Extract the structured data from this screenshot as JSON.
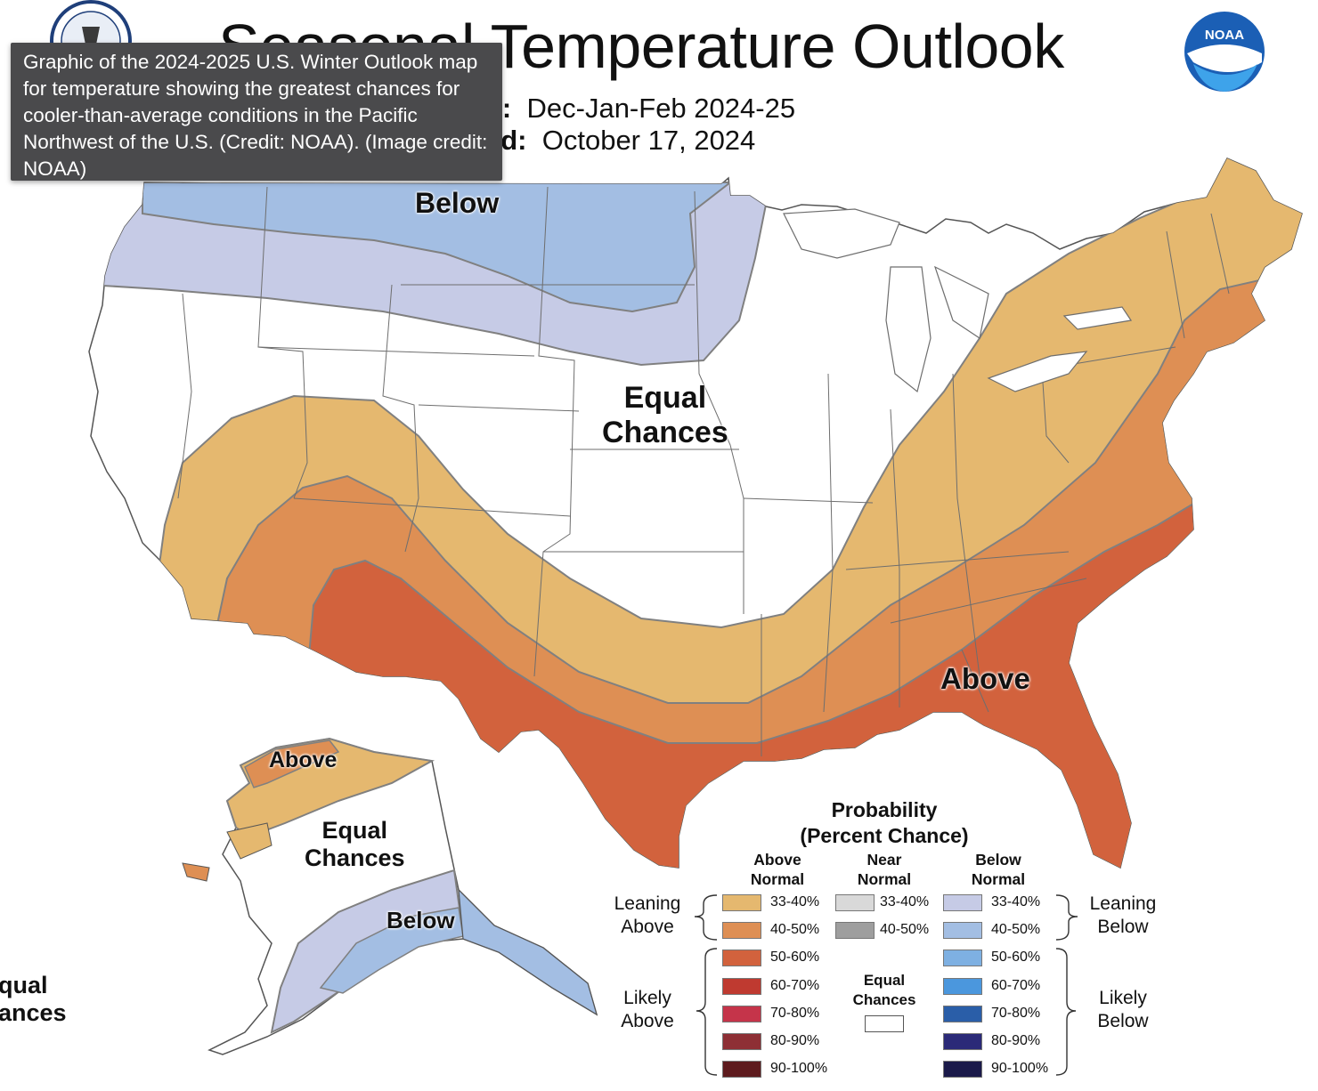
{
  "title": "Seasonal Temperature Outlook",
  "header": {
    "valid_label": "d:",
    "valid_value": "Dec-Jan-Feb 2024-25",
    "issued_label": "ed:",
    "issued_value": "October 17, 2024"
  },
  "tooltip": {
    "text": "Graphic of the 2024-2025 U.S. Winter Outlook map for temperature showing the greatest chances for cooler-than-average conditions in the Pacific Northwest of the U.S. (Credit: NOAA). (Image credit: NOAA)"
  },
  "logos": {
    "noaa_text": "NOAA"
  },
  "map_labels": {
    "below_north": "Below",
    "equal_chances": "Equal\nChances",
    "above_south": "Above",
    "alaska_above": "Above",
    "alaska_equal": "Equal\nChances",
    "alaska_below": "Below",
    "hawaii_equal": "qual\nances"
  },
  "colors": {
    "above_33_40": "#e5b86f",
    "above_40_50": "#de8f54",
    "above_50_60": "#d2623d",
    "below_33_40": "#c6cbe6",
    "below_40_50": "#a3bee3",
    "border": "#808080",
    "state_line": "#6e6e6e"
  },
  "legend": {
    "title": "Probability\n(Percent Chance)",
    "columns": {
      "above": "Above\nNormal",
      "near": "Near\nNormal",
      "below": "Below\nNormal"
    },
    "above_rows": [
      {
        "label": "33-40%",
        "color": "#e5b86f"
      },
      {
        "label": "40-50%",
        "color": "#de8f54"
      },
      {
        "label": "50-60%",
        "color": "#d2623d"
      },
      {
        "label": "60-70%",
        "color": "#bf3a30"
      },
      {
        "label": "70-80%",
        "color": "#c5344a"
      },
      {
        "label": "80-90%",
        "color": "#8e2f35"
      },
      {
        "label": "90-100%",
        "color": "#5e1b1e"
      }
    ],
    "near_rows": [
      {
        "label": "33-40%",
        "color": "#d9d9d9"
      },
      {
        "label": "40-50%",
        "color": "#9e9e9e"
      }
    ],
    "below_rows": [
      {
        "label": "33-40%",
        "color": "#c6cbe6"
      },
      {
        "label": "40-50%",
        "color": "#a3bee3"
      },
      {
        "label": "50-60%",
        "color": "#7eb0e2"
      },
      {
        "label": "60-70%",
        "color": "#4b97dd"
      },
      {
        "label": "70-80%",
        "color": "#2a5ea8"
      },
      {
        "label": "80-90%",
        "color": "#2b2a78"
      },
      {
        "label": "90-100%",
        "color": "#1b1a4a"
      }
    ],
    "equal_chances": "Equal\nChances",
    "leaning_above": "Leaning\nAbove",
    "likely_above": "Likely\nAbove",
    "leaning_below": "Leaning\nBelow",
    "likely_below": "Likely\nBelow"
  }
}
